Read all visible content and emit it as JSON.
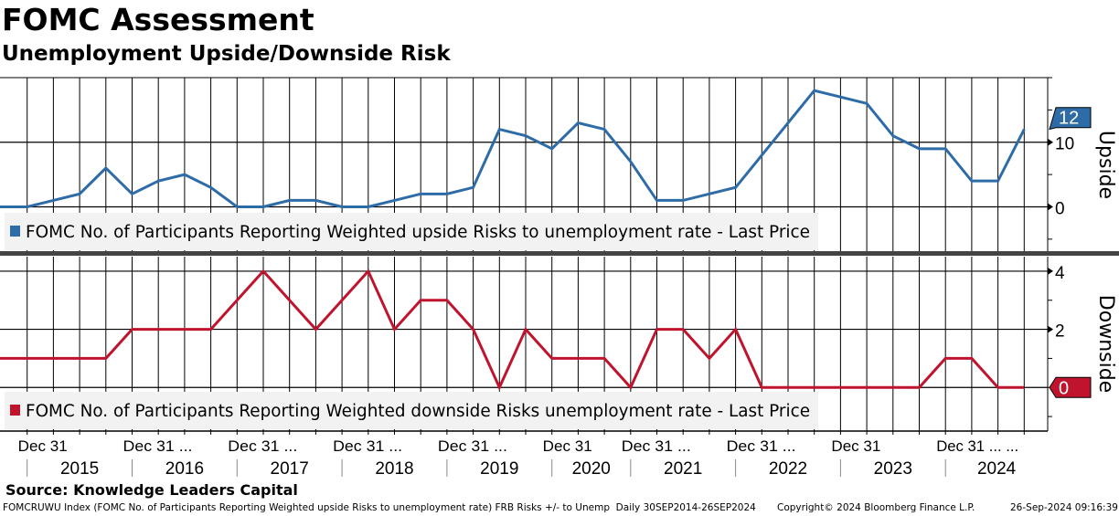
{
  "header": {
    "title": "FOMC Assessment",
    "subtitle": "Unemployment Upside/Downside Risk"
  },
  "chart_data": [
    {
      "type": "line",
      "panel": "top",
      "axis_title": "Upside",
      "series": [
        {
          "name": "FOMC No. of Participants Reporting Weighted upside Risks to unemployment rate - Last Price",
          "color": "#2e6ca8",
          "values": [
            0,
            0,
            1,
            2,
            6,
            2,
            4,
            5,
            3,
            0,
            0,
            1,
            1,
            0,
            0,
            1,
            2,
            2,
            3,
            12,
            11,
            9,
            13,
            12,
            7,
            1,
            1,
            2,
            3,
            8,
            13,
            18,
            17,
            16,
            11,
            9,
            9,
            4,
            4,
            12
          ]
        }
      ],
      "y_ticks": [
        0,
        10
      ],
      "ylim": [
        -7,
        20
      ],
      "last_value": "12",
      "legend_placement": "bottom-left",
      "grid": true
    },
    {
      "type": "line",
      "panel": "bottom",
      "axis_title": "Downside",
      "series": [
        {
          "name": "FOMC No. of Participants Reporting Weighted downside Risks unemployment rate - Last Price",
          "color": "#c0142e",
          "values": [
            1,
            1,
            1,
            1,
            1,
            2,
            2,
            2,
            2,
            3,
            4,
            3,
            2,
            3,
            4,
            2,
            3,
            3,
            2,
            0,
            2,
            1,
            1,
            1,
            0,
            2,
            2,
            1,
            2,
            0,
            0,
            0,
            0,
            0,
            0,
            0,
            1,
            1,
            0,
            0
          ]
        }
      ],
      "y_ticks": [
        2,
        4
      ],
      "ylim": [
        -1.5,
        4.5
      ],
      "last_value": "0",
      "legend_placement": "bottom-left",
      "grid": true
    }
  ],
  "x_axis": {
    "year_boundaries_index": [
      1,
      5,
      9,
      13,
      17,
      21,
      24,
      28,
      32,
      36,
      40
    ],
    "tick_labels": [
      "Dec 31",
      "Dec 31 ...",
      "Dec 31 ...",
      "Dec 31 ...",
      "Dec 31 ...",
      "Dec 31",
      "Dec 31 ...",
      "Dec 31 ...",
      "Dec 31",
      "Dec 31 ... ..."
    ],
    "years": [
      "2015",
      "2016",
      "2017",
      "2018",
      "2019",
      "2020",
      "2021",
      "2022",
      "2023",
      "2024"
    ]
  },
  "footer": {
    "source": "Source: Knowledge Leaders Capital",
    "description": "FOMCRUWU Index (FOMC No. of Participants Reporting Weighted upside Risks to unemployment rate) FRB Risks +/- to Unemp  Daily 30SEP2014-26SEP2024",
    "copyright": "Copyright© 2024 Bloomberg Finance L.P.",
    "timestamp": "26-Sep-2024 09:16:39"
  }
}
